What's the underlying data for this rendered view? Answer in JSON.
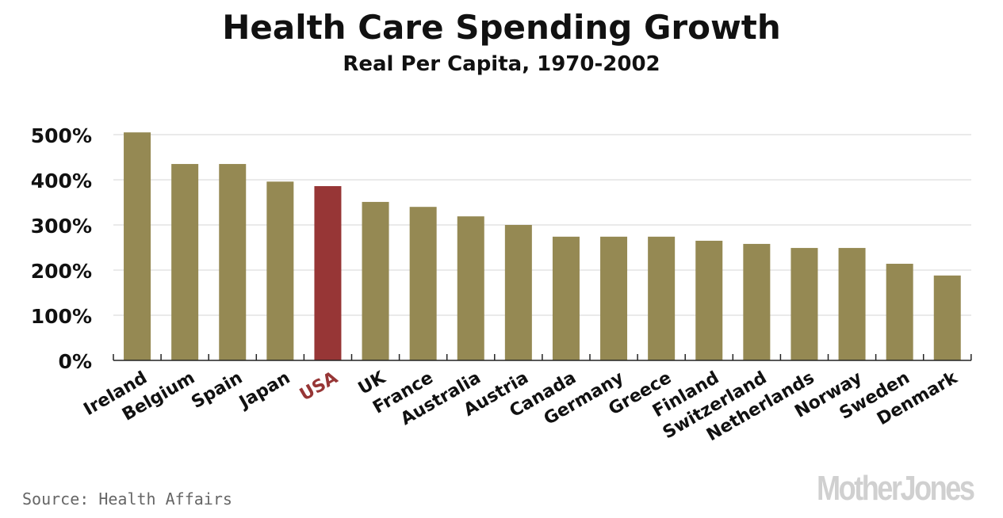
{
  "chart_data": {
    "type": "bar",
    "title": "Health Care Spending Growth",
    "subtitle": "Real Per Capita, 1970-2002",
    "xlabel": "",
    "ylabel": "",
    "ylim": [
      0,
      500
    ],
    "yticks": [
      0,
      100,
      200,
      300,
      400,
      500
    ],
    "ytick_labels": [
      "0%",
      "100%",
      "200%",
      "300%",
      "400%",
      "500%"
    ],
    "grid": true,
    "categories": [
      "Ireland",
      "Belgium",
      "Spain",
      "Japan",
      "USA",
      "UK",
      "France",
      "Australia",
      "Austria",
      "Canada",
      "Germany",
      "Greece",
      "Finland",
      "Switzerland",
      "Netherlands",
      "Norway",
      "Sweden",
      "Denmark"
    ],
    "values": [
      505,
      435,
      435,
      396,
      386,
      351,
      340,
      319,
      300,
      274,
      274,
      274,
      265,
      258,
      249,
      249,
      214,
      188
    ],
    "highlight": "USA",
    "colors": {
      "bar": "#958953",
      "highlight": "#973636",
      "grid": "#e4e4e4",
      "axis": "#222222",
      "label": "#111111"
    }
  },
  "source": "Source: Health Affairs",
  "logo": "MotherJones"
}
